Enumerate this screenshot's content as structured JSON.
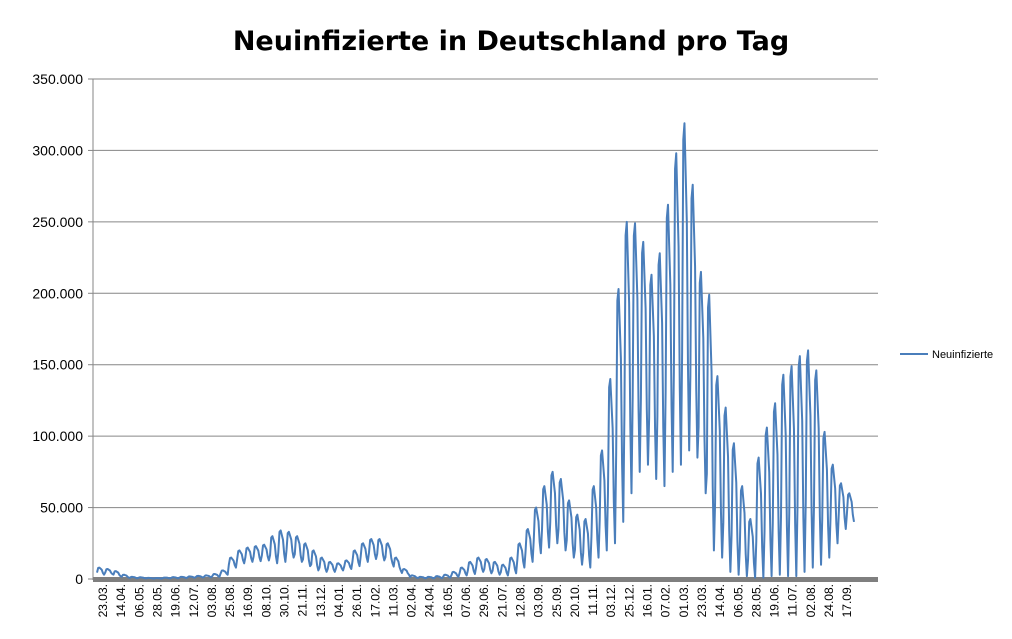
{
  "chart_data": {
    "type": "line",
    "title": "Neuinfizierte in Deutschland pro Tag",
    "xlabel": "",
    "ylabel": "",
    "ylim": [
      0,
      350000
    ],
    "yticks": [
      0,
      50000,
      100000,
      150000,
      200000,
      250000,
      300000,
      350000
    ],
    "ytick_labels": [
      "0",
      "50.000",
      "100.000",
      "150.000",
      "200.000",
      "250.000",
      "300.000",
      "350.000"
    ],
    "x_tick_labels": [
      "23.03.",
      "14.04.",
      "06.05.",
      "28.05.",
      "19.06.",
      "12.07.",
      "03.08.",
      "25.08.",
      "16.09.",
      "08.10.",
      "30.10.",
      "21.11.",
      "13.12.",
      "04.01.",
      "26.01.",
      "17.02.",
      "11.03.",
      "02.04.",
      "24.04.",
      "16.05.",
      "07.06.",
      "29.06.",
      "21.07.",
      "12.08.",
      "03.09.",
      "25.09.",
      "20.10.",
      "11.11.",
      "03.12.",
      "25.12.",
      "16.01.",
      "07.02.",
      "01.03.",
      "23.03.",
      "14.04.",
      "06.05.",
      "28.05.",
      "19.06.",
      "11.07.",
      "02.08.",
      "24.08.",
      "17.09."
    ],
    "grid": true,
    "legend_position": "right",
    "series": [
      {
        "name": "Neuinfizierte",
        "color": "#4a7ebb",
        "weekly_low": [
          3000,
          3500,
          2000,
          1000,
          500,
          500,
          300,
          300,
          500,
          500,
          700,
          900,
          1100,
          1200,
          1500,
          3000,
          8000,
          11000,
          12000,
          12500,
          13000,
          11000,
          12000,
          15000,
          12000,
          9000,
          6000,
          5000,
          5000,
          6000,
          7000,
          9000,
          12000,
          14000,
          13000,
          11000,
          6000,
          3000,
          800,
          500,
          500,
          600,
          900,
          1500,
          2500,
          3500,
          5000,
          4000,
          3000,
          2500,
          4000,
          8000,
          12000,
          18000,
          22000,
          25000,
          20000,
          15000,
          10000,
          8000,
          15000,
          20000,
          25000,
          40000,
          60000,
          75000,
          80000,
          70000,
          65000,
          75000,
          80000,
          90000,
          85000,
          60000,
          20000,
          15000,
          5000,
          3000,
          2000,
          1000,
          1000,
          2000,
          3000,
          2000,
          2000,
          5000,
          8000,
          10000,
          15000,
          25000,
          35000,
          40000
        ],
        "weekly_high": [
          8000,
          7000,
          5500,
          3000,
          1500,
          1200,
          800,
          700,
          1000,
          1300,
          1500,
          1800,
          2200,
          2500,
          3500,
          6000,
          15000,
          20000,
          22000,
          23000,
          24000,
          30000,
          34000,
          33000,
          30000,
          25000,
          20000,
          15000,
          12000,
          11000,
          13000,
          20000,
          25000,
          28000,
          28000,
          25000,
          15000,
          7000,
          2500,
          1500,
          1500,
          2000,
          3000,
          5000,
          8000,
          12000,
          15000,
          14000,
          12000,
          10000,
          15000,
          25000,
          35000,
          50000,
          65000,
          75000,
          70000,
          55000,
          45000,
          42000,
          65000,
          90000,
          140000,
          203000,
          250000,
          249000,
          236000,
          213000,
          228000,
          262000,
          298000,
          319000,
          276000,
          215000,
          199000,
          142000,
          120000,
          95000,
          65000,
          42000,
          85000,
          106000,
          123000,
          143000,
          149000,
          156000,
          160000,
          146000,
          103000,
          80000,
          67000,
          60000
        ]
      }
    ]
  }
}
